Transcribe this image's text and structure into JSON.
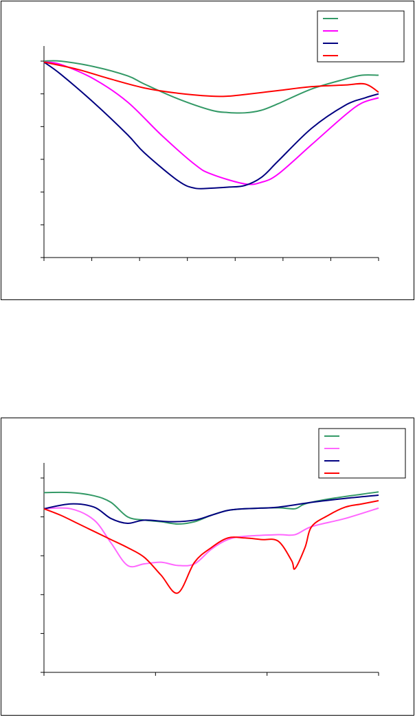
{
  "chart_data": [
    {
      "type": "line",
      "title": "",
      "xlabel": "",
      "ylabel": "",
      "x_ticks": 8,
      "y_ticks": 7,
      "grid": false,
      "legend_position": "top-right",
      "xlim": [
        0,
        1
      ],
      "ylim": [
        0,
        6
      ],
      "series": [
        {
          "color": "#339966",
          "label": "",
          "points": [
            [
              0,
              6.0
            ],
            [
              0.05,
              6.0
            ],
            [
              0.15,
              5.83
            ],
            [
              0.25,
              5.55
            ],
            [
              0.3,
              5.3
            ],
            [
              0.4,
              4.85
            ],
            [
              0.5,
              4.5
            ],
            [
              0.55,
              4.43
            ],
            [
              0.6,
              4.42
            ],
            [
              0.65,
              4.5
            ],
            [
              0.7,
              4.7
            ],
            [
              0.8,
              5.15
            ],
            [
              0.9,
              5.45
            ],
            [
              0.95,
              5.57
            ],
            [
              1.0,
              5.57
            ]
          ]
        },
        {
          "color": "#FF00FF",
          "label": "",
          "points": [
            [
              0,
              5.97
            ],
            [
              0.05,
              5.9
            ],
            [
              0.15,
              5.45
            ],
            [
              0.25,
              4.75
            ],
            [
              0.35,
              3.75
            ],
            [
              0.45,
              2.85
            ],
            [
              0.5,
              2.55
            ],
            [
              0.6,
              2.25
            ],
            [
              0.65,
              2.3
            ],
            [
              0.7,
              2.55
            ],
            [
              0.8,
              3.45
            ],
            [
              0.9,
              4.35
            ],
            [
              0.95,
              4.72
            ],
            [
              1.0,
              4.88
            ]
          ]
        },
        {
          "color": "#000080",
          "label": "",
          "points": [
            [
              0,
              5.97
            ],
            [
              0.05,
              5.6
            ],
            [
              0.15,
              4.72
            ],
            [
              0.25,
              3.75
            ],
            [
              0.3,
              3.2
            ],
            [
              0.4,
              2.35
            ],
            [
              0.45,
              2.12
            ],
            [
              0.5,
              2.12
            ],
            [
              0.55,
              2.15
            ],
            [
              0.6,
              2.2
            ],
            [
              0.65,
              2.45
            ],
            [
              0.7,
              2.95
            ],
            [
              0.8,
              3.95
            ],
            [
              0.9,
              4.65
            ],
            [
              0.96,
              4.88
            ],
            [
              1.0,
              5.0
            ]
          ]
        },
        {
          "color": "#FF0000",
          "label": "",
          "points": [
            [
              0,
              5.97
            ],
            [
              0.1,
              5.75
            ],
            [
              0.2,
              5.45
            ],
            [
              0.3,
              5.18
            ],
            [
              0.4,
              5.02
            ],
            [
              0.5,
              4.93
            ],
            [
              0.55,
              4.93
            ],
            [
              0.6,
              4.98
            ],
            [
              0.7,
              5.1
            ],
            [
              0.8,
              5.22
            ],
            [
              0.9,
              5.27
            ],
            [
              0.96,
              5.3
            ],
            [
              1.0,
              5.05
            ]
          ]
        }
      ]
    },
    {
      "type": "line",
      "title": "",
      "xlabel": "",
      "ylabel": "",
      "x_ticks": 4,
      "y_ticks": 6,
      "grid": false,
      "legend_position": "top-right",
      "xlim": [
        0,
        1
      ],
      "ylim": [
        0,
        6
      ],
      "series": [
        {
          "color": "#339966",
          "label": "",
          "points": [
            [
              0,
              5.55
            ],
            [
              0.08,
              5.55
            ],
            [
              0.15,
              5.45
            ],
            [
              0.2,
              5.25
            ],
            [
              0.25,
              4.8
            ],
            [
              0.3,
              4.7
            ],
            [
              0.35,
              4.65
            ],
            [
              0.4,
              4.58
            ],
            [
              0.45,
              4.65
            ],
            [
              0.5,
              4.85
            ],
            [
              0.55,
              5.0
            ],
            [
              0.6,
              5.05
            ],
            [
              0.7,
              5.08
            ],
            [
              0.75,
              5.05
            ],
            [
              0.78,
              5.2
            ],
            [
              0.85,
              5.35
            ],
            [
              0.95,
              5.5
            ],
            [
              1.0,
              5.57
            ]
          ]
        },
        {
          "color": "#FF66FF",
          "label": "",
          "points": [
            [
              0,
              5.05
            ],
            [
              0.08,
              5.05
            ],
            [
              0.15,
              4.7
            ],
            [
              0.2,
              4.0
            ],
            [
              0.25,
              3.3
            ],
            [
              0.3,
              3.35
            ],
            [
              0.35,
              3.4
            ],
            [
              0.4,
              3.3
            ],
            [
              0.45,
              3.35
            ],
            [
              0.5,
              3.8
            ],
            [
              0.55,
              4.1
            ],
            [
              0.6,
              4.2
            ],
            [
              0.7,
              4.25
            ],
            [
              0.75,
              4.25
            ],
            [
              0.8,
              4.5
            ],
            [
              0.9,
              4.75
            ],
            [
              1.0,
              5.07
            ]
          ]
        },
        {
          "color": "#000080",
          "label": "",
          "points": [
            [
              0,
              5.05
            ],
            [
              0.08,
              5.2
            ],
            [
              0.15,
              5.1
            ],
            [
              0.2,
              4.75
            ],
            [
              0.25,
              4.6
            ],
            [
              0.3,
              4.7
            ],
            [
              0.38,
              4.65
            ],
            [
              0.45,
              4.7
            ],
            [
              0.5,
              4.85
            ],
            [
              0.55,
              5.0
            ],
            [
              0.6,
              5.05
            ],
            [
              0.7,
              5.1
            ],
            [
              0.8,
              5.25
            ],
            [
              0.9,
              5.37
            ],
            [
              1.0,
              5.47
            ]
          ]
        },
        {
          "color": "#FF0000",
          "label": "",
          "points": [
            [
              0,
              5.05
            ],
            [
              0.05,
              4.85
            ],
            [
              0.1,
              4.6
            ],
            [
              0.15,
              4.35
            ],
            [
              0.2,
              4.1
            ],
            [
              0.25,
              3.85
            ],
            [
              0.3,
              3.55
            ],
            [
              0.35,
              3.0
            ],
            [
              0.4,
              2.45
            ],
            [
              0.45,
              3.4
            ],
            [
              0.5,
              3.85
            ],
            [
              0.55,
              4.15
            ],
            [
              0.6,
              4.15
            ],
            [
              0.65,
              4.1
            ],
            [
              0.7,
              4.05
            ],
            [
              0.74,
              3.45
            ],
            [
              0.75,
              3.2
            ],
            [
              0.78,
              3.85
            ],
            [
              0.8,
              4.5
            ],
            [
              0.85,
              4.85
            ],
            [
              0.9,
              5.1
            ],
            [
              0.95,
              5.2
            ],
            [
              1.0,
              5.3
            ]
          ]
        }
      ]
    }
  ]
}
